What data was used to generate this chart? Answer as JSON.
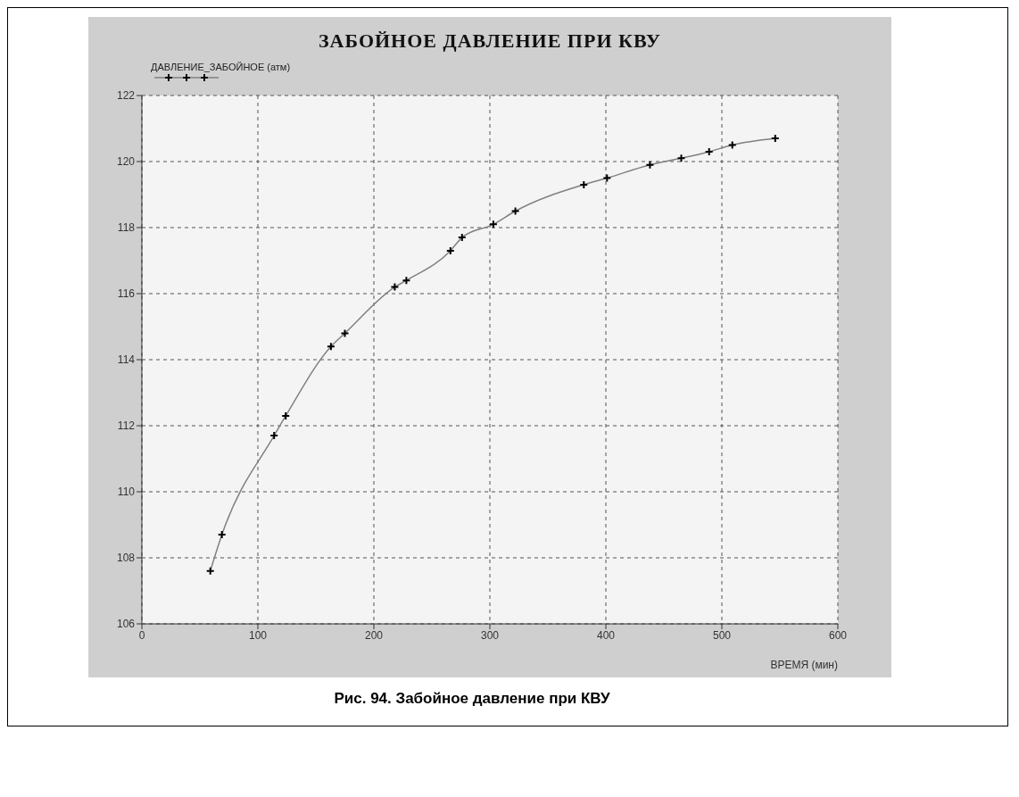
{
  "chart_data": {
    "type": "line",
    "title": "ЗАБОЙНОЕ ДАВЛЕНИЕ ПРИ КВУ",
    "xlabel": "ВРЕМЯ (мин)",
    "annotations": [
      "Рис. 94. Забойное давление при КВУ"
    ],
    "series": [
      {
        "name": "ДАВЛЕНИЕ_ЗАБОЙНОЕ (атм)",
        "color": "#808080",
        "x": [
          59,
          69,
          114,
          124,
          163,
          175,
          218,
          228,
          266,
          276,
          303,
          322,
          381,
          401,
          438,
          465,
          489,
          509,
          546
        ],
        "values": [
          107.6,
          108.7,
          111.7,
          112.3,
          114.4,
          114.8,
          116.2,
          116.4,
          117.3,
          117.7,
          118.1,
          118.5,
          119.3,
          119.5,
          119.9,
          120.1,
          120.3,
          120.5,
          120.7
        ]
      }
    ],
    "xlim": [
      0,
      600
    ],
    "xticks": [
      0,
      100,
      200,
      300,
      400,
      500,
      600
    ],
    "ylim": [
      106,
      122
    ],
    "yticks": [
      106,
      108,
      110,
      112,
      114,
      116,
      118,
      120,
      122
    ],
    "grid": true,
    "legend": "top left",
    "marker": "cross",
    "line_style": "solid"
  }
}
